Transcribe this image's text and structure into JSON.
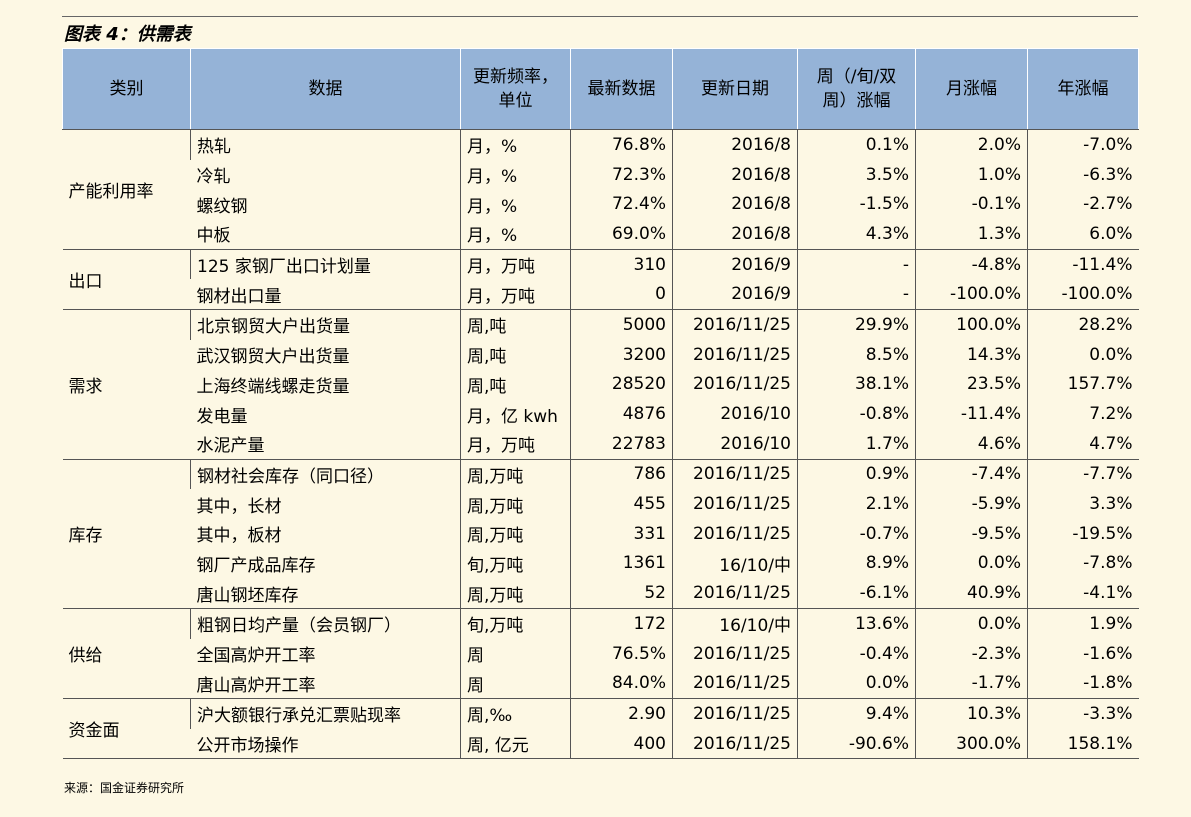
{
  "title": "图表 4：供需表",
  "table": {
    "header": [
      "类别",
      "数据",
      "更新频率，\n单位",
      "最新数据",
      "更新日期",
      "周（/旬/双\n周）涨幅",
      "月涨幅",
      "年涨幅"
    ],
    "groups": [
      {
        "name": "产能利用率",
        "rows": [
          [
            "热轧",
            "月，%",
            "76.8%",
            "2016/8",
            "0.1%",
            "2.0%",
            "-7.0%"
          ],
          [
            "冷轧",
            "月，%",
            "72.3%",
            "2016/8",
            "3.5%",
            "1.0%",
            "-6.3%"
          ],
          [
            "螺纹钢",
            "月，%",
            "72.4%",
            "2016/8",
            "-1.5%",
            "-0.1%",
            "-2.7%"
          ],
          [
            "中板",
            "月，%",
            "69.0%",
            "2016/8",
            "4.3%",
            "1.3%",
            "6.0%"
          ]
        ]
      },
      {
        "name": "出口",
        "rows": [
          [
            "125 家钢厂出口计划量",
            "月，万吨",
            "310",
            "2016/9",
            "-",
            "-4.8%",
            "-11.4%"
          ],
          [
            "钢材出口量",
            "月，万吨",
            "0",
            "2016/9",
            "-",
            "-100.0%",
            "-100.0%"
          ]
        ]
      },
      {
        "name": "需求",
        "rows": [
          [
            "北京钢贸大户出货量",
            "周,吨",
            "5000",
            "2016/11/25",
            "29.9%",
            "100.0%",
            "28.2%"
          ],
          [
            "武汉钢贸大户出货量",
            "周,吨",
            "3200",
            "2016/11/25",
            "8.5%",
            "14.3%",
            "0.0%"
          ],
          [
            "上海终端线螺走货量",
            "周,吨",
            "28520",
            "2016/11/25",
            "38.1%",
            "23.5%",
            "157.7%"
          ],
          [
            "发电量",
            "月，亿 kwh",
            "4876",
            "2016/10",
            "-0.8%",
            "-11.4%",
            "7.2%"
          ],
          [
            "水泥产量",
            "月，万吨",
            "22783",
            "2016/10",
            "1.7%",
            "4.6%",
            "4.7%"
          ]
        ]
      },
      {
        "name": "库存",
        "rows": [
          [
            "钢材社会库存（同口径）",
            "周,万吨",
            "786",
            "2016/11/25",
            "0.9%",
            "-7.4%",
            "-7.7%"
          ],
          [
            "其中，长材",
            "周,万吨",
            "455",
            "2016/11/25",
            "2.1%",
            "-5.9%",
            "3.3%"
          ],
          [
            "其中，板材",
            "周,万吨",
            "331",
            "2016/11/25",
            "-0.7%",
            "-9.5%",
            "-19.5%"
          ],
          [
            "钢厂产成品库存",
            "旬,万吨",
            "1361",
            "16/10/中",
            "8.9%",
            "0.0%",
            "-7.8%"
          ],
          [
            "唐山钢坯库存",
            "周,万吨",
            "52",
            "2016/11/25",
            "-6.1%",
            "40.9%",
            "-4.1%"
          ]
        ]
      },
      {
        "name": "供给",
        "rows": [
          [
            "粗钢日均产量（会员钢厂）",
            "旬,万吨",
            "172",
            "16/10/中",
            "13.6%",
            "0.0%",
            "1.9%"
          ],
          [
            "全国高炉开工率",
            "周",
            "76.5%",
            "2016/11/25",
            "-0.4%",
            "-2.3%",
            "-1.6%"
          ],
          [
            "唐山高炉开工率",
            "周",
            "84.0%",
            "2016/11/25",
            "0.0%",
            "-1.7%",
            "-1.8%"
          ]
        ]
      },
      {
        "name": "资金面",
        "rows": [
          [
            "沪大额银行承兑汇票贴现率",
            "周,‰",
            "2.90",
            "2016/11/25",
            "9.4%",
            "10.3%",
            "-3.3%"
          ],
          [
            "公开市场操作",
            "周, 亿元",
            "400",
            "2016/11/25",
            "-90.6%",
            "300.0%",
            "158.1%"
          ]
        ]
      }
    ]
  },
  "source": "来源：国金证券研究所"
}
